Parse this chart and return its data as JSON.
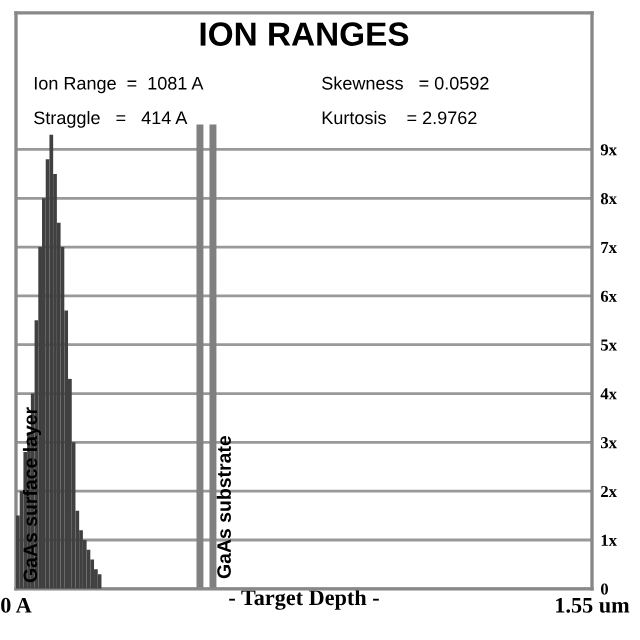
{
  "chart_data": {
    "type": "histogram",
    "title": "ION RANGES",
    "xlabel": "- Target Depth -",
    "bins": [
      0,
      0.01,
      0.02,
      0.03,
      0.04,
      0.05,
      0.06,
      0.07,
      0.08,
      0.09,
      0.1,
      0.11,
      0.12,
      0.13,
      0.14,
      0.15,
      0.16,
      0.17,
      0.18,
      0.19,
      0.2,
      0.21,
      0.22,
      0.23
    ],
    "values": [
      1.5,
      2.0,
      2.8,
      3.2,
      4.0,
      5.5,
      7.0,
      8.0,
      8.8,
      9.3,
      8.5,
      7.5,
      7.0,
      5.7,
      4.3,
      3.0,
      1.6,
      1.2,
      1.0,
      0.8,
      0.6,
      0.4,
      0.3
    ],
    "color": "#404040",
    "xlim": [
      0,
      1.55
    ],
    "xticks": [
      {
        "value": 0,
        "label": "0 A"
      },
      {
        "value": 1.55,
        "label": "1.55 um"
      }
    ],
    "ylim": [
      0,
      11.8
    ],
    "yticks": [
      {
        "value": 0,
        "label": "0"
      },
      {
        "value": 1,
        "label": "1x"
      },
      {
        "value": 2,
        "label": "2x"
      },
      {
        "value": 3,
        "label": "3x"
      },
      {
        "value": 4,
        "label": "4x"
      },
      {
        "value": 5,
        "label": "5x"
      },
      {
        "value": 6,
        "label": "6x"
      },
      {
        "value": 7,
        "label": "7x"
      },
      {
        "value": 8,
        "label": "8x"
      },
      {
        "value": 9,
        "label": "9x"
      }
    ],
    "grid": "y",
    "ref_lines": [
      {
        "axis": "x",
        "value": 0.495,
        "color": "#808080"
      },
      {
        "axis": "x",
        "value": 0.53,
        "color": "#808080"
      }
    ],
    "annotations": [
      "Ion Range  =  1081 A",
      "Straggle   =   414 A",
      "Skewness   = 0.0592",
      "Kurtosis    = 2.9762",
      "GaAs surface layer",
      "GaAs substrate"
    ]
  }
}
